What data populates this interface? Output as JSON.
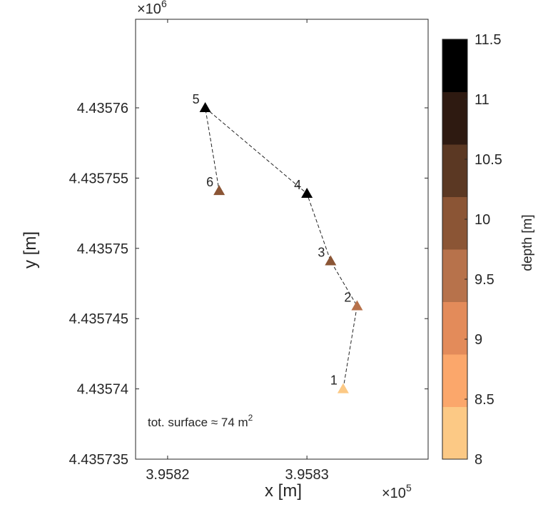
{
  "chart_data": {
    "type": "scatter",
    "xlabel": "x [m]",
    "ylabel": "y [m]",
    "x_multiplier": "×10",
    "x_multiplier_exp": "5",
    "y_multiplier": "×10",
    "y_multiplier_exp": "6",
    "xlim": [
      395817.7,
      395838.7
    ],
    "ylim": [
      4435735,
      4435766.3
    ],
    "x_ticks": [
      395820,
      395830
    ],
    "x_tick_labels": [
      "3.9582",
      "3.9583"
    ],
    "y_ticks": [
      4435735,
      4435740,
      4435745,
      4435750,
      4435755,
      4435760
    ],
    "y_tick_labels": [
      "4.435735",
      "4.43574",
      "4.435745",
      "4.43575",
      "4.435755",
      "4.43576"
    ],
    "grid": false,
    "marker": "triangle",
    "line_style": "dashed",
    "points": [
      {
        "label": "1",
        "x": 395832.6,
        "y": 4435740.0,
        "depth": 8.2
      },
      {
        "label": "2",
        "x": 395833.6,
        "y": 4435745.9,
        "depth": 9.6
      },
      {
        "label": "3",
        "x": 395831.7,
        "y": 4435749.1,
        "depth": 10.0
      },
      {
        "label": "4",
        "x": 395830.0,
        "y": 4435753.9,
        "depth": 11.5
      },
      {
        "label": "5",
        "x": 395822.7,
        "y": 4435760.0,
        "depth": 11.5
      },
      {
        "label": "6",
        "x": 395823.7,
        "y": 4435754.1,
        "depth": 10.0
      }
    ],
    "annotation": {
      "text": "tot. surface ≈ 74 m",
      "sup": "2"
    },
    "colorbar": {
      "label": "depth [m]",
      "limits": [
        8,
        11.5
      ],
      "ticks": [
        8,
        8.5,
        9,
        9.5,
        10,
        10.5,
        11,
        11.5
      ],
      "tick_labels": [
        "8",
        "8.5",
        "9",
        "9.5",
        "10",
        "10.5",
        "11",
        "11.5"
      ],
      "colors": [
        "#FCC985",
        "#FBA76B",
        "#E38B5A",
        "#B7724B",
        "#8B5535",
        "#5B3823",
        "#2E1A11",
        "#000000"
      ]
    }
  }
}
